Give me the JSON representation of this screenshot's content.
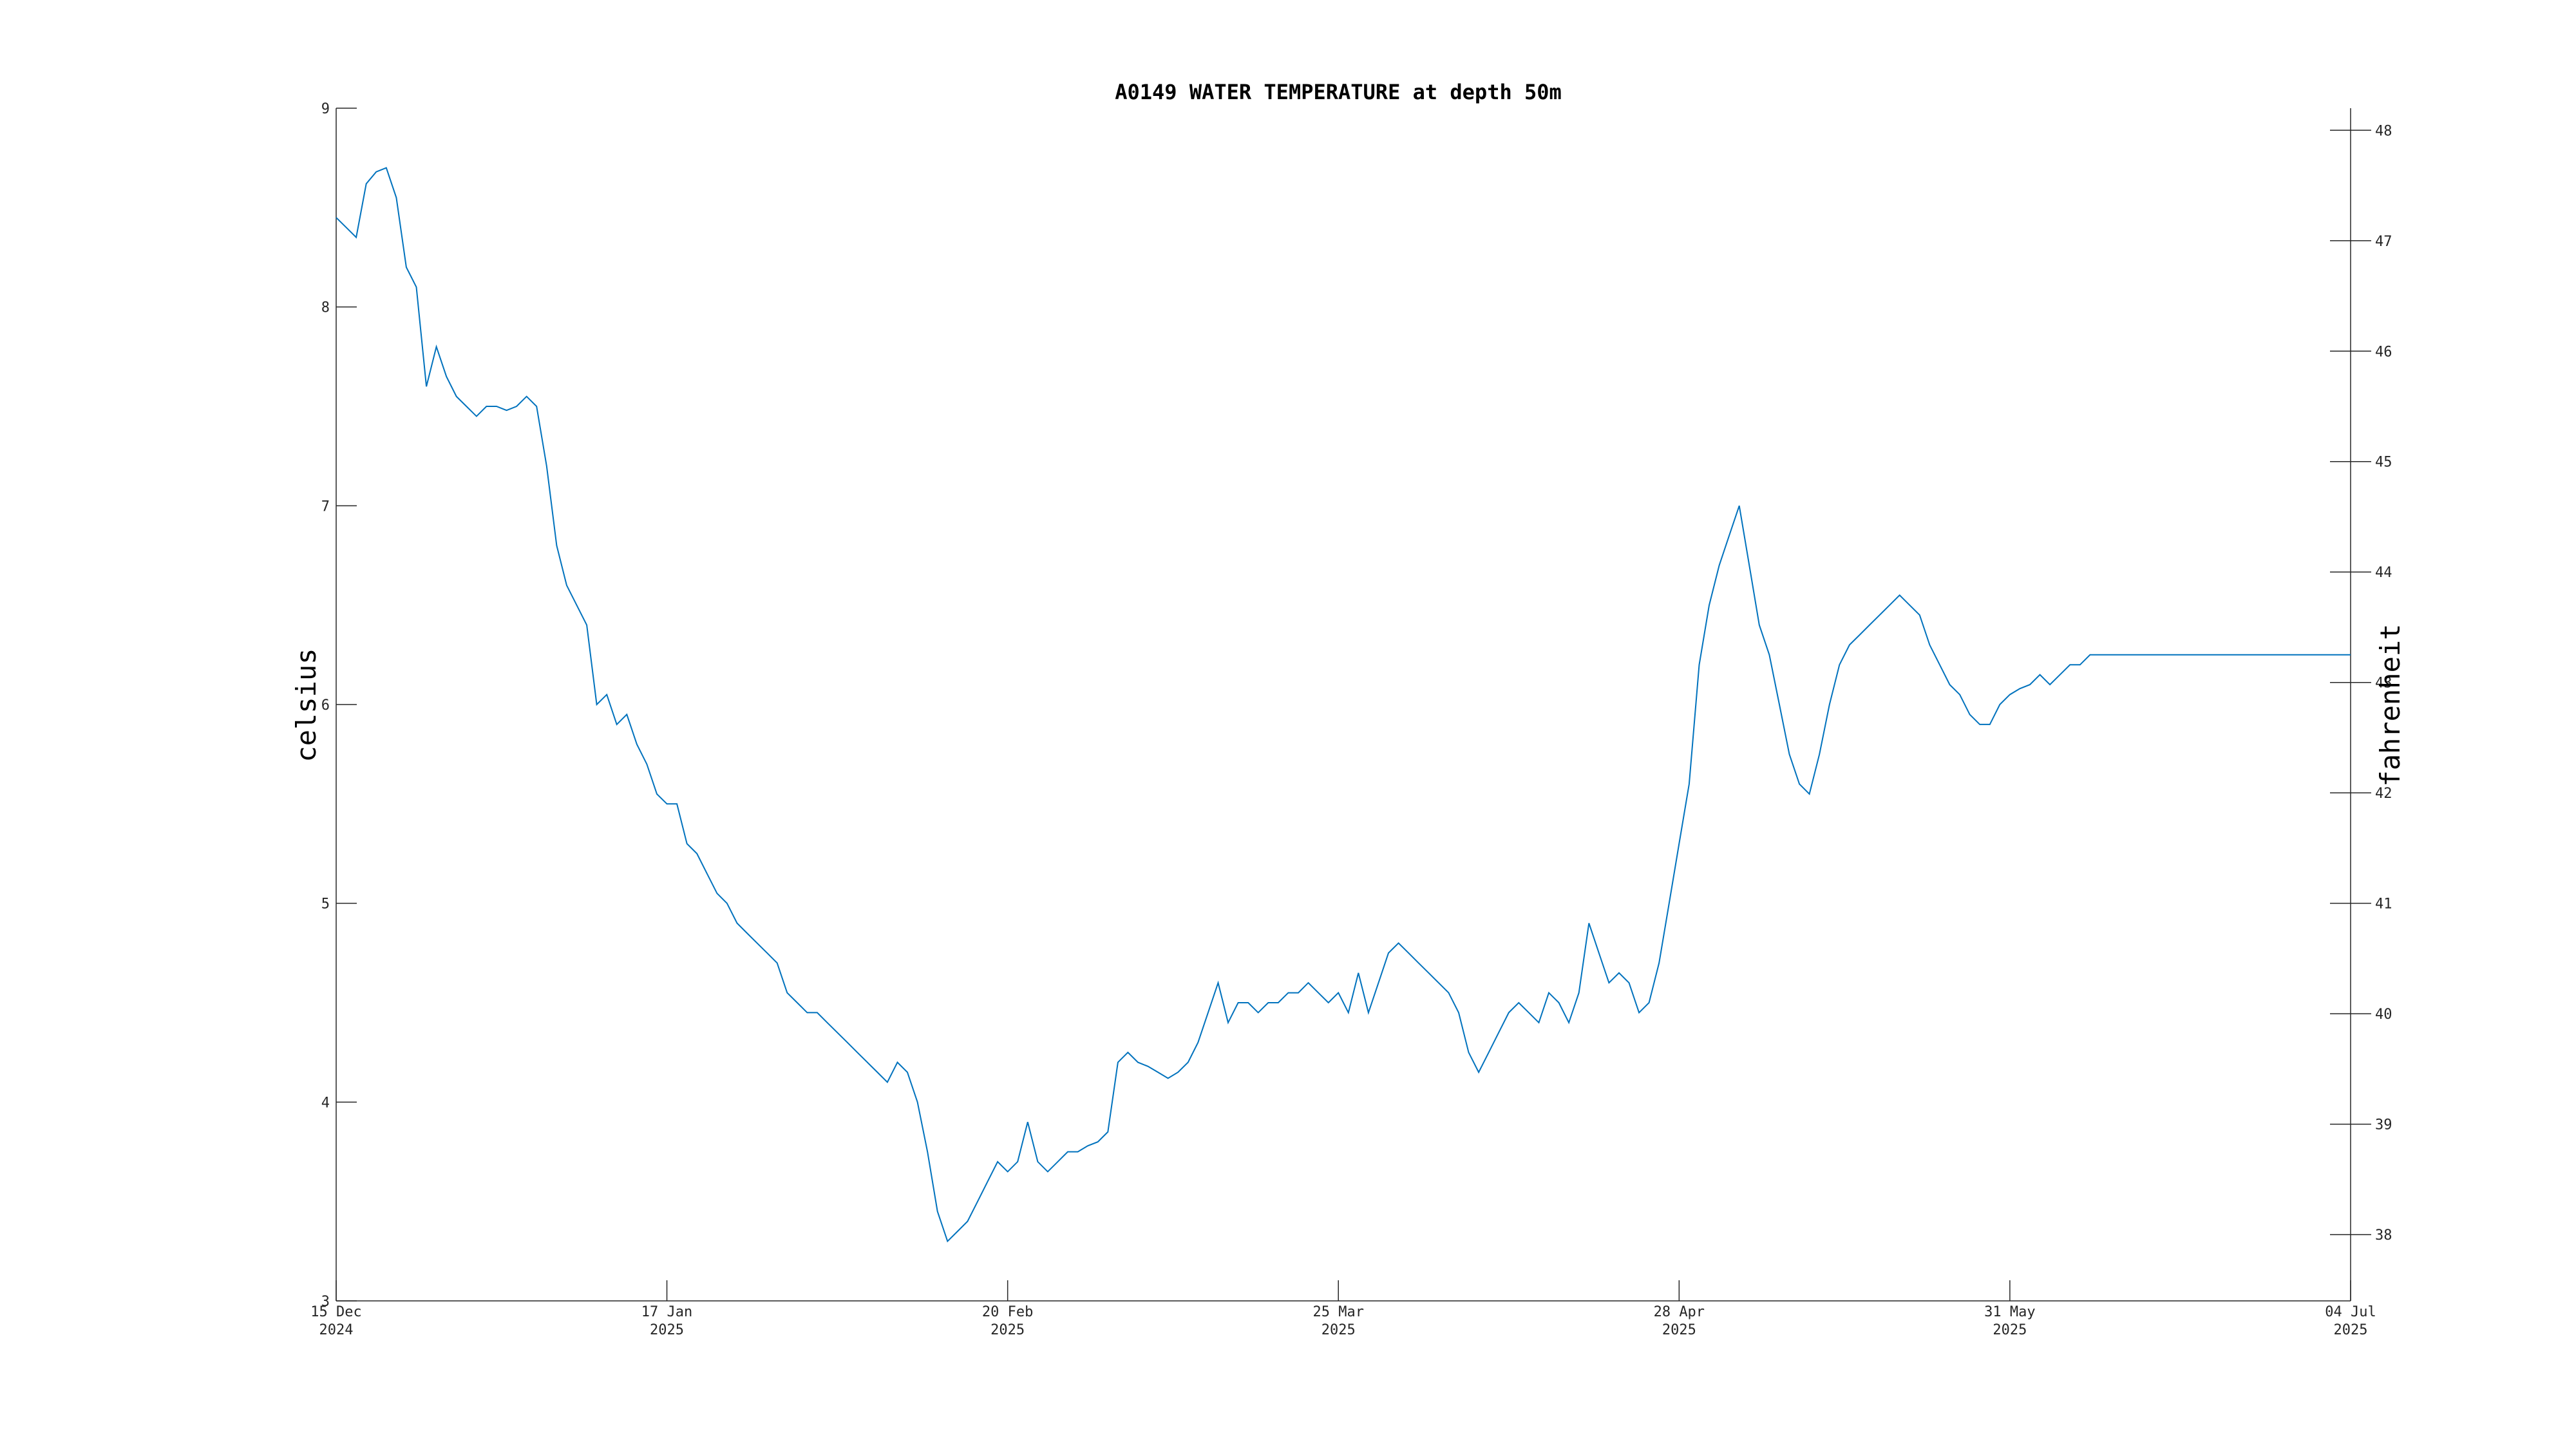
{
  "chart_data": {
    "type": "line",
    "title": "A0149 WATER TEMPERATURE at depth 50m",
    "ylabel": "celsius",
    "ylabel_right": "fahrenheit",
    "xlabel": "",
    "xlim": [
      "2024-12-15",
      "2025-07-04"
    ],
    "ylim": [
      3,
      9
    ],
    "ylim_right": [
      37.4,
      48.2
    ],
    "y_ticks": [
      3,
      4,
      5,
      6,
      7,
      8,
      9
    ],
    "y_ticks_right": [
      38,
      39,
      40,
      41,
      42,
      43,
      44,
      45,
      46,
      47,
      48
    ],
    "x_ticks": [
      {
        "date": "2024-12-15",
        "line1": "15 Dec",
        "line2": "2024"
      },
      {
        "date": "2025-01-17",
        "line1": "17 Jan",
        "line2": "2025"
      },
      {
        "date": "2025-02-20",
        "line1": "20 Feb",
        "line2": "2025"
      },
      {
        "date": "2025-03-25",
        "line1": "25 Mar",
        "line2": "2025"
      },
      {
        "date": "2025-04-28",
        "line1": "28 Apr",
        "line2": "2025"
      },
      {
        "date": "2025-05-31",
        "line1": "31 May",
        "line2": "2025"
      },
      {
        "date": "2025-07-04",
        "line1": "04 Jul",
        "line2": "2025"
      }
    ],
    "grid": false,
    "color": "#0072bd",
    "series": [
      {
        "x": [
          "2024-12-15",
          "2024-12-16",
          "2024-12-17",
          "2024-12-18",
          "2024-12-19",
          "2024-12-20",
          "2024-12-21",
          "2024-12-22",
          "2024-12-23",
          "2024-12-24",
          "2024-12-25",
          "2024-12-26",
          "2024-12-27",
          "2024-12-28",
          "2024-12-29",
          "2024-12-30",
          "2024-12-31",
          "2025-01-01",
          "2025-01-02",
          "2025-01-03",
          "2025-01-04",
          "2025-01-05",
          "2025-01-06",
          "2025-01-07",
          "2025-01-08",
          "2025-01-09",
          "2025-01-10",
          "2025-01-11",
          "2025-01-12",
          "2025-01-13",
          "2025-01-14",
          "2025-01-15",
          "2025-01-16",
          "2025-01-17",
          "2025-01-18",
          "2025-01-19",
          "2025-01-20",
          "2025-01-21",
          "2025-01-22",
          "2025-01-23",
          "2025-01-24",
          "2025-01-25",
          "2025-01-26",
          "2025-01-27",
          "2025-01-28",
          "2025-01-29",
          "2025-01-30",
          "2025-01-31",
          "2025-02-01",
          "2025-02-02",
          "2025-02-03",
          "2025-02-04",
          "2025-02-05",
          "2025-02-06",
          "2025-02-07",
          "2025-02-08",
          "2025-02-09",
          "2025-02-10",
          "2025-02-11",
          "2025-02-12",
          "2025-02-13",
          "2025-02-14",
          "2025-02-15",
          "2025-02-16",
          "2025-02-17",
          "2025-02-18",
          "2025-02-19",
          "2025-02-20",
          "2025-02-21",
          "2025-02-22",
          "2025-02-23",
          "2025-02-24",
          "2025-02-25",
          "2025-02-26",
          "2025-02-27",
          "2025-02-28",
          "2025-03-01",
          "2025-03-02",
          "2025-03-03",
          "2025-03-04",
          "2025-03-05",
          "2025-03-06",
          "2025-03-07",
          "2025-03-08",
          "2025-03-09",
          "2025-03-10",
          "2025-03-11",
          "2025-03-12",
          "2025-03-13",
          "2025-03-14",
          "2025-03-15",
          "2025-03-16",
          "2025-03-17",
          "2025-03-18",
          "2025-03-19",
          "2025-03-20",
          "2025-03-21",
          "2025-03-22",
          "2025-03-23",
          "2025-03-24",
          "2025-03-25",
          "2025-03-26",
          "2025-03-27",
          "2025-03-28",
          "2025-03-29",
          "2025-03-30",
          "2025-03-31",
          "2025-04-01",
          "2025-04-02",
          "2025-04-03",
          "2025-04-04",
          "2025-04-05",
          "2025-04-06",
          "2025-04-07",
          "2025-04-08",
          "2025-04-09",
          "2025-04-10",
          "2025-04-11",
          "2025-04-12",
          "2025-04-13",
          "2025-04-14",
          "2025-04-15",
          "2025-04-16",
          "2025-04-17",
          "2025-04-18",
          "2025-04-19",
          "2025-04-20",
          "2025-04-21",
          "2025-04-22",
          "2025-04-23",
          "2025-04-24",
          "2025-04-25",
          "2025-04-26",
          "2025-04-27",
          "2025-04-28",
          "2025-04-29",
          "2025-04-30",
          "2025-05-01",
          "2025-05-02",
          "2025-05-03",
          "2025-05-04",
          "2025-05-05",
          "2025-05-06",
          "2025-05-07",
          "2025-05-08",
          "2025-05-09",
          "2025-05-10",
          "2025-05-11",
          "2025-05-12",
          "2025-05-13",
          "2025-05-14",
          "2025-05-15",
          "2025-05-16",
          "2025-05-17",
          "2025-05-18",
          "2025-05-19",
          "2025-05-20",
          "2025-05-21",
          "2025-05-22",
          "2025-05-23",
          "2025-05-24",
          "2025-05-25",
          "2025-05-26",
          "2025-05-27",
          "2025-05-28",
          "2025-05-29",
          "2025-05-30",
          "2025-05-31",
          "2025-06-01",
          "2025-06-02",
          "2025-06-03",
          "2025-06-04",
          "2025-06-05",
          "2025-06-06",
          "2025-06-07",
          "2025-06-08",
          "2025-06-09",
          "2025-06-10",
          "2025-06-11",
          "2025-06-12",
          "2025-06-13",
          "2025-06-14",
          "2025-06-15",
          "2025-06-16",
          "2025-06-17",
          "2025-06-18",
          "2025-06-19",
          "2025-06-20",
          "2025-06-21",
          "2025-06-22",
          "2025-06-23",
          "2025-06-24",
          "2025-06-25",
          "2025-06-26",
          "2025-06-27",
          "2025-06-28",
          "2025-06-29",
          "2025-06-30",
          "2025-07-01",
          "2025-07-02",
          "2025-07-03",
          "2025-07-04"
        ],
        "y": [
          8.45,
          8.4,
          8.35,
          8.62,
          8.68,
          8.7,
          8.55,
          8.2,
          8.1,
          7.6,
          7.8,
          7.65,
          7.55,
          7.5,
          7.45,
          7.5,
          7.5,
          7.48,
          7.5,
          7.55,
          7.5,
          7.2,
          6.8,
          6.6,
          6.5,
          6.4,
          6.0,
          6.05,
          5.9,
          5.95,
          5.8,
          5.7,
          5.55,
          5.5,
          5.5,
          5.3,
          5.25,
          5.15,
          5.05,
          5.0,
          4.9,
          4.85,
          4.8,
          4.75,
          4.7,
          4.55,
          4.5,
          4.45,
          4.45,
          4.4,
          4.35,
          4.3,
          4.25,
          4.2,
          4.15,
          4.1,
          4.2,
          4.15,
          4.0,
          3.75,
          3.45,
          3.3,
          3.35,
          3.4,
          3.5,
          3.6,
          3.7,
          3.65,
          3.7,
          3.9,
          3.7,
          3.65,
          3.7,
          3.75,
          3.75,
          3.78,
          3.8,
          3.85,
          4.2,
          4.25,
          4.2,
          4.18,
          4.15,
          4.12,
          4.15,
          4.2,
          4.3,
          4.45,
          4.6,
          4.4,
          4.5,
          4.5,
          4.45,
          4.5,
          4.5,
          4.55,
          4.55,
          4.6,
          4.55,
          4.5,
          4.55,
          4.45,
          4.65,
          4.45,
          4.6,
          4.75,
          4.8,
          4.75,
          4.7,
          4.65,
          4.6,
          4.55,
          4.45,
          4.25,
          4.15,
          4.25,
          4.35,
          4.45,
          4.5,
          4.45,
          4.4,
          4.55,
          4.5,
          4.4,
          4.55,
          4.9,
          4.75,
          4.6,
          4.65,
          4.6,
          4.45,
          4.5,
          4.7,
          5.0,
          5.3,
          5.6,
          6.2,
          6.5,
          6.7,
          6.85,
          7.0,
          6.7,
          6.4,
          6.25,
          6.0,
          5.75,
          5.6,
          5.55,
          5.75,
          6.0,
          6.2,
          6.3,
          6.35,
          6.4,
          6.45,
          6.5,
          6.55,
          6.5,
          6.45,
          6.3,
          6.2,
          6.1,
          6.05,
          5.95,
          5.9,
          5.9,
          6.0,
          6.05,
          6.08,
          6.1,
          6.15,
          6.1,
          6.15,
          6.2,
          6.2,
          6.25,
          6.25,
          6.25,
          6.25,
          6.25,
          6.25,
          6.25,
          6.25,
          6.25,
          6.25,
          6.25,
          6.25,
          6.25,
          6.25,
          6.25,
          6.25,
          6.25,
          6.25,
          6.25,
          6.25,
          6.25,
          6.25,
          6.25,
          6.25,
          6.25,
          6.25,
          6.25
        ]
      }
    ]
  }
}
